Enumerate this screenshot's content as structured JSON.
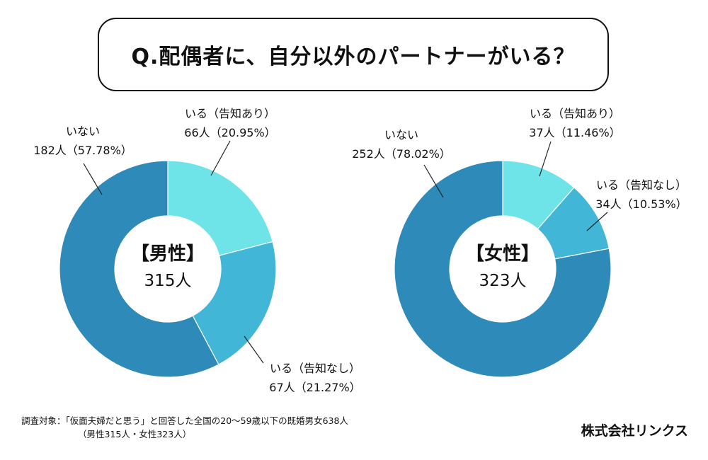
{
  "title": "Q.配偶者に、自分以外のパートナーがいる？",
  "chart_data": [
    {
      "type": "pie",
      "subtype": "donut",
      "center_title": "【男性】",
      "center_count": "315人",
      "slices": [
        {
          "name": "いる（告知あり）",
          "count": 66,
          "count_label": "66人",
          "percent": 20.95,
          "percent_label": "（20.95%）",
          "color": "#6ee3e8"
        },
        {
          "name": "いる（告知なし）",
          "count": 67,
          "count_label": "67人",
          "percent": 21.27,
          "percent_label": "（21.27%）",
          "color": "#42b6d6"
        },
        {
          "name": "いない",
          "count": 182,
          "count_label": "182人",
          "percent": 57.78,
          "percent_label": "（57.78%）",
          "color": "#2e8ab8"
        }
      ]
    },
    {
      "type": "pie",
      "subtype": "donut",
      "center_title": "【女性】",
      "center_count": "323人",
      "slices": [
        {
          "name": "いる（告知あり）",
          "count": 37,
          "count_label": "37人",
          "percent": 11.46,
          "percent_label": "（11.46%）",
          "color": "#6ee3e8"
        },
        {
          "name": "いる（告知なし）",
          "count": 34,
          "count_label": "34人",
          "percent": 10.53,
          "percent_label": "（10.53%）",
          "color": "#42b6d6"
        },
        {
          "name": "いない",
          "count": 252,
          "count_label": "252人",
          "percent": 78.02,
          "percent_label": "（78.02%）",
          "color": "#2e8ab8"
        }
      ]
    }
  ],
  "footnote": {
    "line1": "調査対象：「仮面夫婦だと思う」と回答した全国の20〜59歳以下の既婚男女638人",
    "line2": "（男性315人・女性323人）"
  },
  "company": "株式会社リンクス"
}
